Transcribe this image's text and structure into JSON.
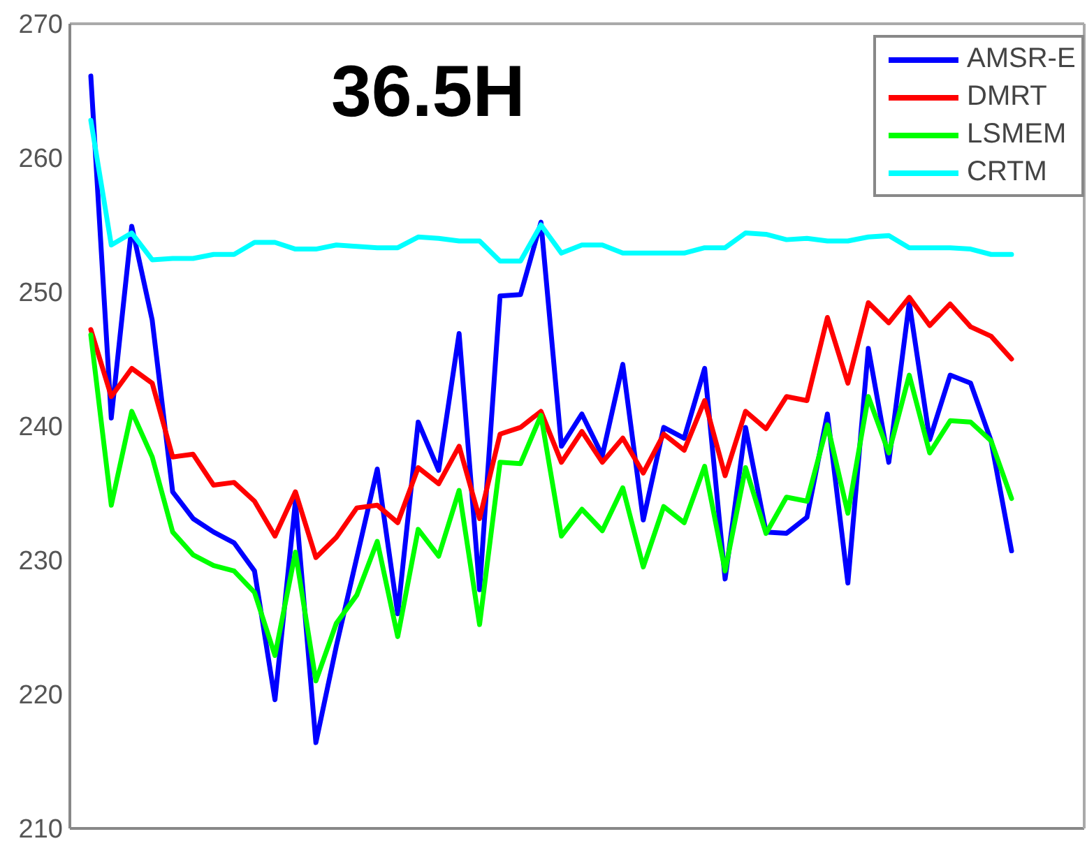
{
  "chart_data": {
    "type": "line",
    "title": "36.5H",
    "categories": [
      null,
      null,
      null,
      null,
      null,
      null,
      null,
      null,
      null,
      null,
      null,
      null,
      null,
      null,
      null,
      null,
      null,
      null,
      null,
      null,
      null,
      null,
      null,
      null,
      null,
      null,
      null,
      null,
      null,
      null,
      null,
      null,
      null,
      null,
      null,
      null,
      null,
      null,
      null,
      null,
      null,
      null,
      null,
      null,
      null,
      null
    ],
    "series": [
      {
        "name": "AMSR-E",
        "color": "#0000ff",
        "values": [
          266.1,
          240.6,
          254.9,
          247.9,
          235.1,
          233.1,
          232.1,
          231.3,
          229.2,
          219.6,
          234.4,
          216.4,
          223.6,
          230.2,
          236.8,
          226.0,
          240.3,
          236.7,
          246.9,
          227.8,
          249.7,
          249.8,
          255.2,
          238.5,
          240.9,
          237.8,
          244.6,
          233.0,
          239.9,
          239.1,
          244.3,
          228.6,
          239.9,
          232.1,
          232.0,
          233.2,
          240.9,
          228.3,
          245.8,
          237.3,
          249.2,
          239.0,
          243.8,
          243.2,
          238.9,
          230.7
        ]
      },
      {
        "name": "DMRT",
        "color": "#ff0000",
        "values": [
          247.2,
          242.2,
          244.3,
          243.2,
          237.7,
          237.9,
          235.6,
          235.8,
          234.4,
          231.8,
          235.1,
          230.2,
          231.7,
          233.9,
          234.1,
          232.8,
          236.9,
          235.7,
          238.5,
          233.1,
          239.4,
          239.9,
          241.1,
          237.3,
          239.6,
          237.3,
          239.1,
          236.5,
          239.4,
          238.2,
          241.9,
          236.3,
          241.1,
          239.8,
          242.2,
          241.9,
          248.1,
          243.2,
          249.2,
          247.7,
          249.6,
          247.5,
          249.1,
          247.4,
          246.7,
          245.0
        ]
      },
      {
        "name": "LSMEM",
        "color": "#00ff00",
        "values": [
          246.8,
          234.1,
          241.1,
          237.7,
          232.1,
          230.4,
          229.6,
          229.2,
          227.6,
          222.9,
          230.6,
          221.0,
          225.3,
          227.4,
          231.4,
          224.3,
          232.3,
          230.3,
          235.2,
          225.2,
          237.3,
          237.2,
          240.8,
          231.8,
          233.8,
          232.2,
          235.4,
          229.5,
          234.0,
          232.8,
          237.0,
          229.2,
          236.9,
          232.0,
          234.7,
          234.4,
          240.1,
          233.5,
          242.2,
          238.0,
          243.8,
          238.0,
          240.4,
          240.3,
          238.9,
          234.6
        ]
      },
      {
        "name": "CRTM",
        "color": "#00ffff",
        "values": [
          262.8,
          253.5,
          254.4,
          252.4,
          252.5,
          252.5,
          252.8,
          252.8,
          253.7,
          253.7,
          253.2,
          253.2,
          253.5,
          253.4,
          253.3,
          253.3,
          254.1,
          254.0,
          253.8,
          253.8,
          252.3,
          252.3,
          255.0,
          252.9,
          253.5,
          253.5,
          252.9,
          252.9,
          252.9,
          252.9,
          253.3,
          253.3,
          254.4,
          254.3,
          253.9,
          254.0,
          253.8,
          253.8,
          254.1,
          254.2,
          253.3,
          253.3,
          253.3,
          253.2,
          252.8,
          252.8
        ]
      }
    ],
    "ylim": [
      210,
      270
    ],
    "yticks": [
      210,
      220,
      230,
      240,
      250,
      260,
      270
    ],
    "legend": "top right",
    "tick_labels": "y"
  }
}
